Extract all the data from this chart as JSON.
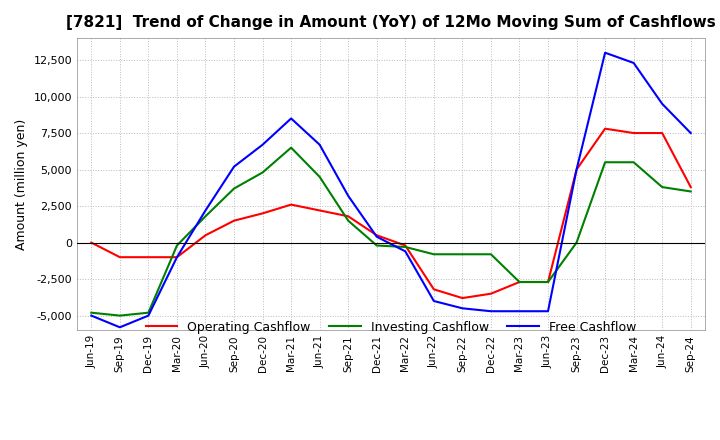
{
  "title": "[7821]  Trend of Change in Amount (YoY) of 12Mo Moving Sum of Cashflows",
  "ylabel": "Amount (million yen)",
  "ylim": [
    -6000,
    14000
  ],
  "yticks": [
    -5000,
    -2500,
    0,
    2500,
    5000,
    7500,
    10000,
    12500
  ],
  "x_labels": [
    "Jun-19",
    "Sep-19",
    "Dec-19",
    "Mar-20",
    "Jun-20",
    "Sep-20",
    "Dec-20",
    "Mar-21",
    "Jun-21",
    "Sep-21",
    "Dec-21",
    "Mar-22",
    "Jun-22",
    "Sep-22",
    "Dec-22",
    "Mar-23",
    "Jun-23",
    "Sep-23",
    "Dec-23",
    "Mar-24",
    "Jun-24",
    "Sep-24"
  ],
  "operating": [
    0,
    -1000,
    -1000,
    -1000,
    500,
    1500,
    2000,
    2600,
    2200,
    1800,
    500,
    -200,
    -3200,
    -3800,
    -3500,
    -2700,
    -2700,
    5000,
    7800,
    7500,
    7500,
    3800
  ],
  "investing": [
    -4800,
    -5000,
    -4800,
    -200,
    1800,
    3700,
    4800,
    6500,
    4500,
    1500,
    -200,
    -300,
    -800,
    -800,
    -800,
    -2700,
    -2700,
    0,
    5500,
    5500,
    3800,
    3500
  ],
  "free": [
    -5000,
    -5800,
    -5000,
    -1000,
    2200,
    5200,
    6700,
    8500,
    6700,
    3200,
    400,
    -600,
    -4000,
    -4500,
    -4700,
    -4700,
    -4700,
    5000,
    13000,
    12300,
    9500,
    7500
  ],
  "op_color": "#ff0000",
  "inv_color": "#008000",
  "free_color": "#0000ff",
  "bg_color": "#ffffff",
  "grid_color": "#bbbbbb",
  "title_fontsize": 11,
  "legend_labels": [
    "Operating Cashflow",
    "Investing Cashflow",
    "Free Cashflow"
  ]
}
